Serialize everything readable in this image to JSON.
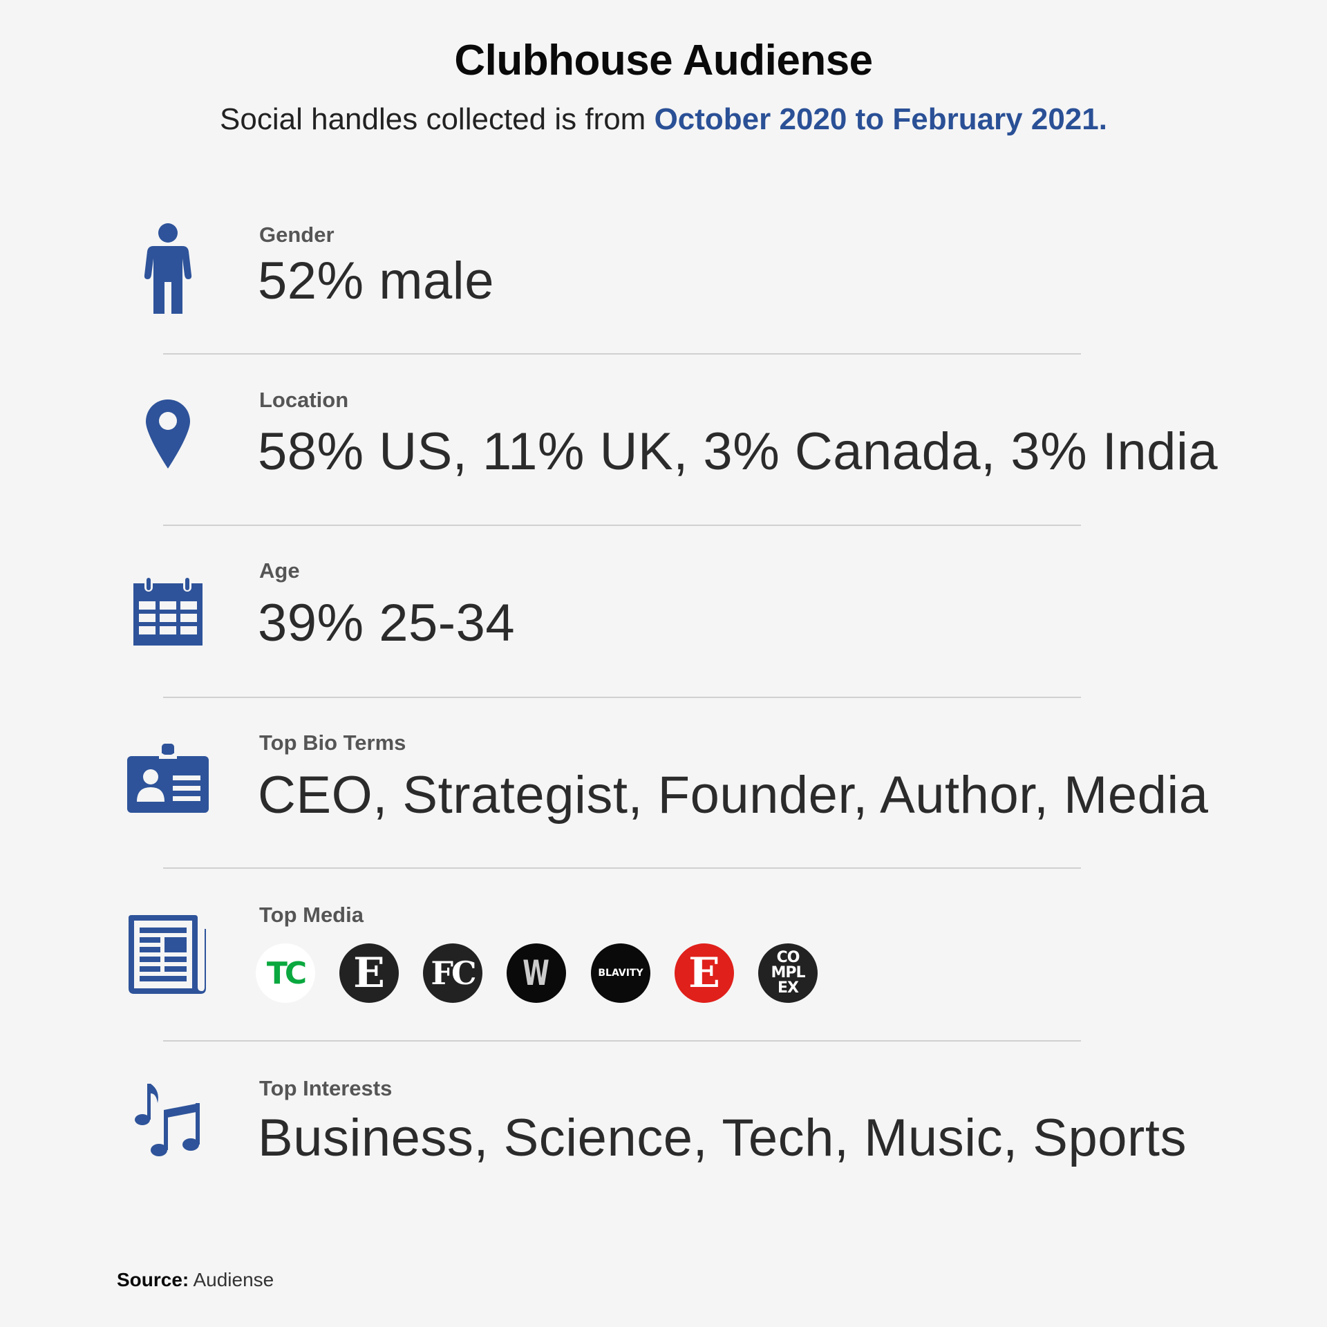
{
  "header": {
    "title": "Clubhouse Audiense",
    "subtitle_prefix": "Social handles collected is from ",
    "subtitle_highlight": "October 2020 to February 2021."
  },
  "rows": [
    {
      "label": "Gender",
      "value": "52% male",
      "icon": "person-icon"
    },
    {
      "label": "Location",
      "value": "58% US, 11% UK, 3% Canada, 3% India",
      "icon": "map-pin-icon"
    },
    {
      "label": "Age",
      "value": "39% 25-34",
      "icon": "calendar-icon"
    },
    {
      "label": "Top Bio Terms",
      "value": "CEO, Strategist, Founder, Author, Media",
      "icon": "id-badge-icon"
    },
    {
      "label": "Top Media",
      "icon": "newspaper-icon"
    },
    {
      "label": "Top Interests",
      "value": "Business, Science, Tech, Music, Sports",
      "icon": "music-notes-icon"
    }
  ],
  "media_logos": [
    {
      "name": "techcrunch-logo",
      "text": "TC",
      "bg": "#ffffff",
      "fg": "#0aa83f"
    },
    {
      "name": "entrepreneur-logo",
      "text": "E",
      "bg": "#222222",
      "fg": "#ffffff"
    },
    {
      "name": "fast-company-logo",
      "text": "FC",
      "bg": "#222222",
      "fg": "#ffffff"
    },
    {
      "name": "wired-style-logo",
      "text": "W",
      "bg": "#0a0a0a",
      "fg": "#cccccc"
    },
    {
      "name": "blavity-logo",
      "text": "BLAVITY",
      "bg": "#0a0a0a",
      "fg": "#ffffff"
    },
    {
      "name": "entertainment-logo",
      "text": "E",
      "bg": "#e0201b",
      "fg": "#ffffff"
    },
    {
      "name": "complex-logo",
      "text": "COMPLEX",
      "bg": "#222222",
      "fg": "#ffffff"
    }
  ],
  "colors": {
    "accent": "#2a5096",
    "icon": "#2e539a"
  },
  "source": {
    "label": "Source:",
    "value": "Audiense"
  }
}
